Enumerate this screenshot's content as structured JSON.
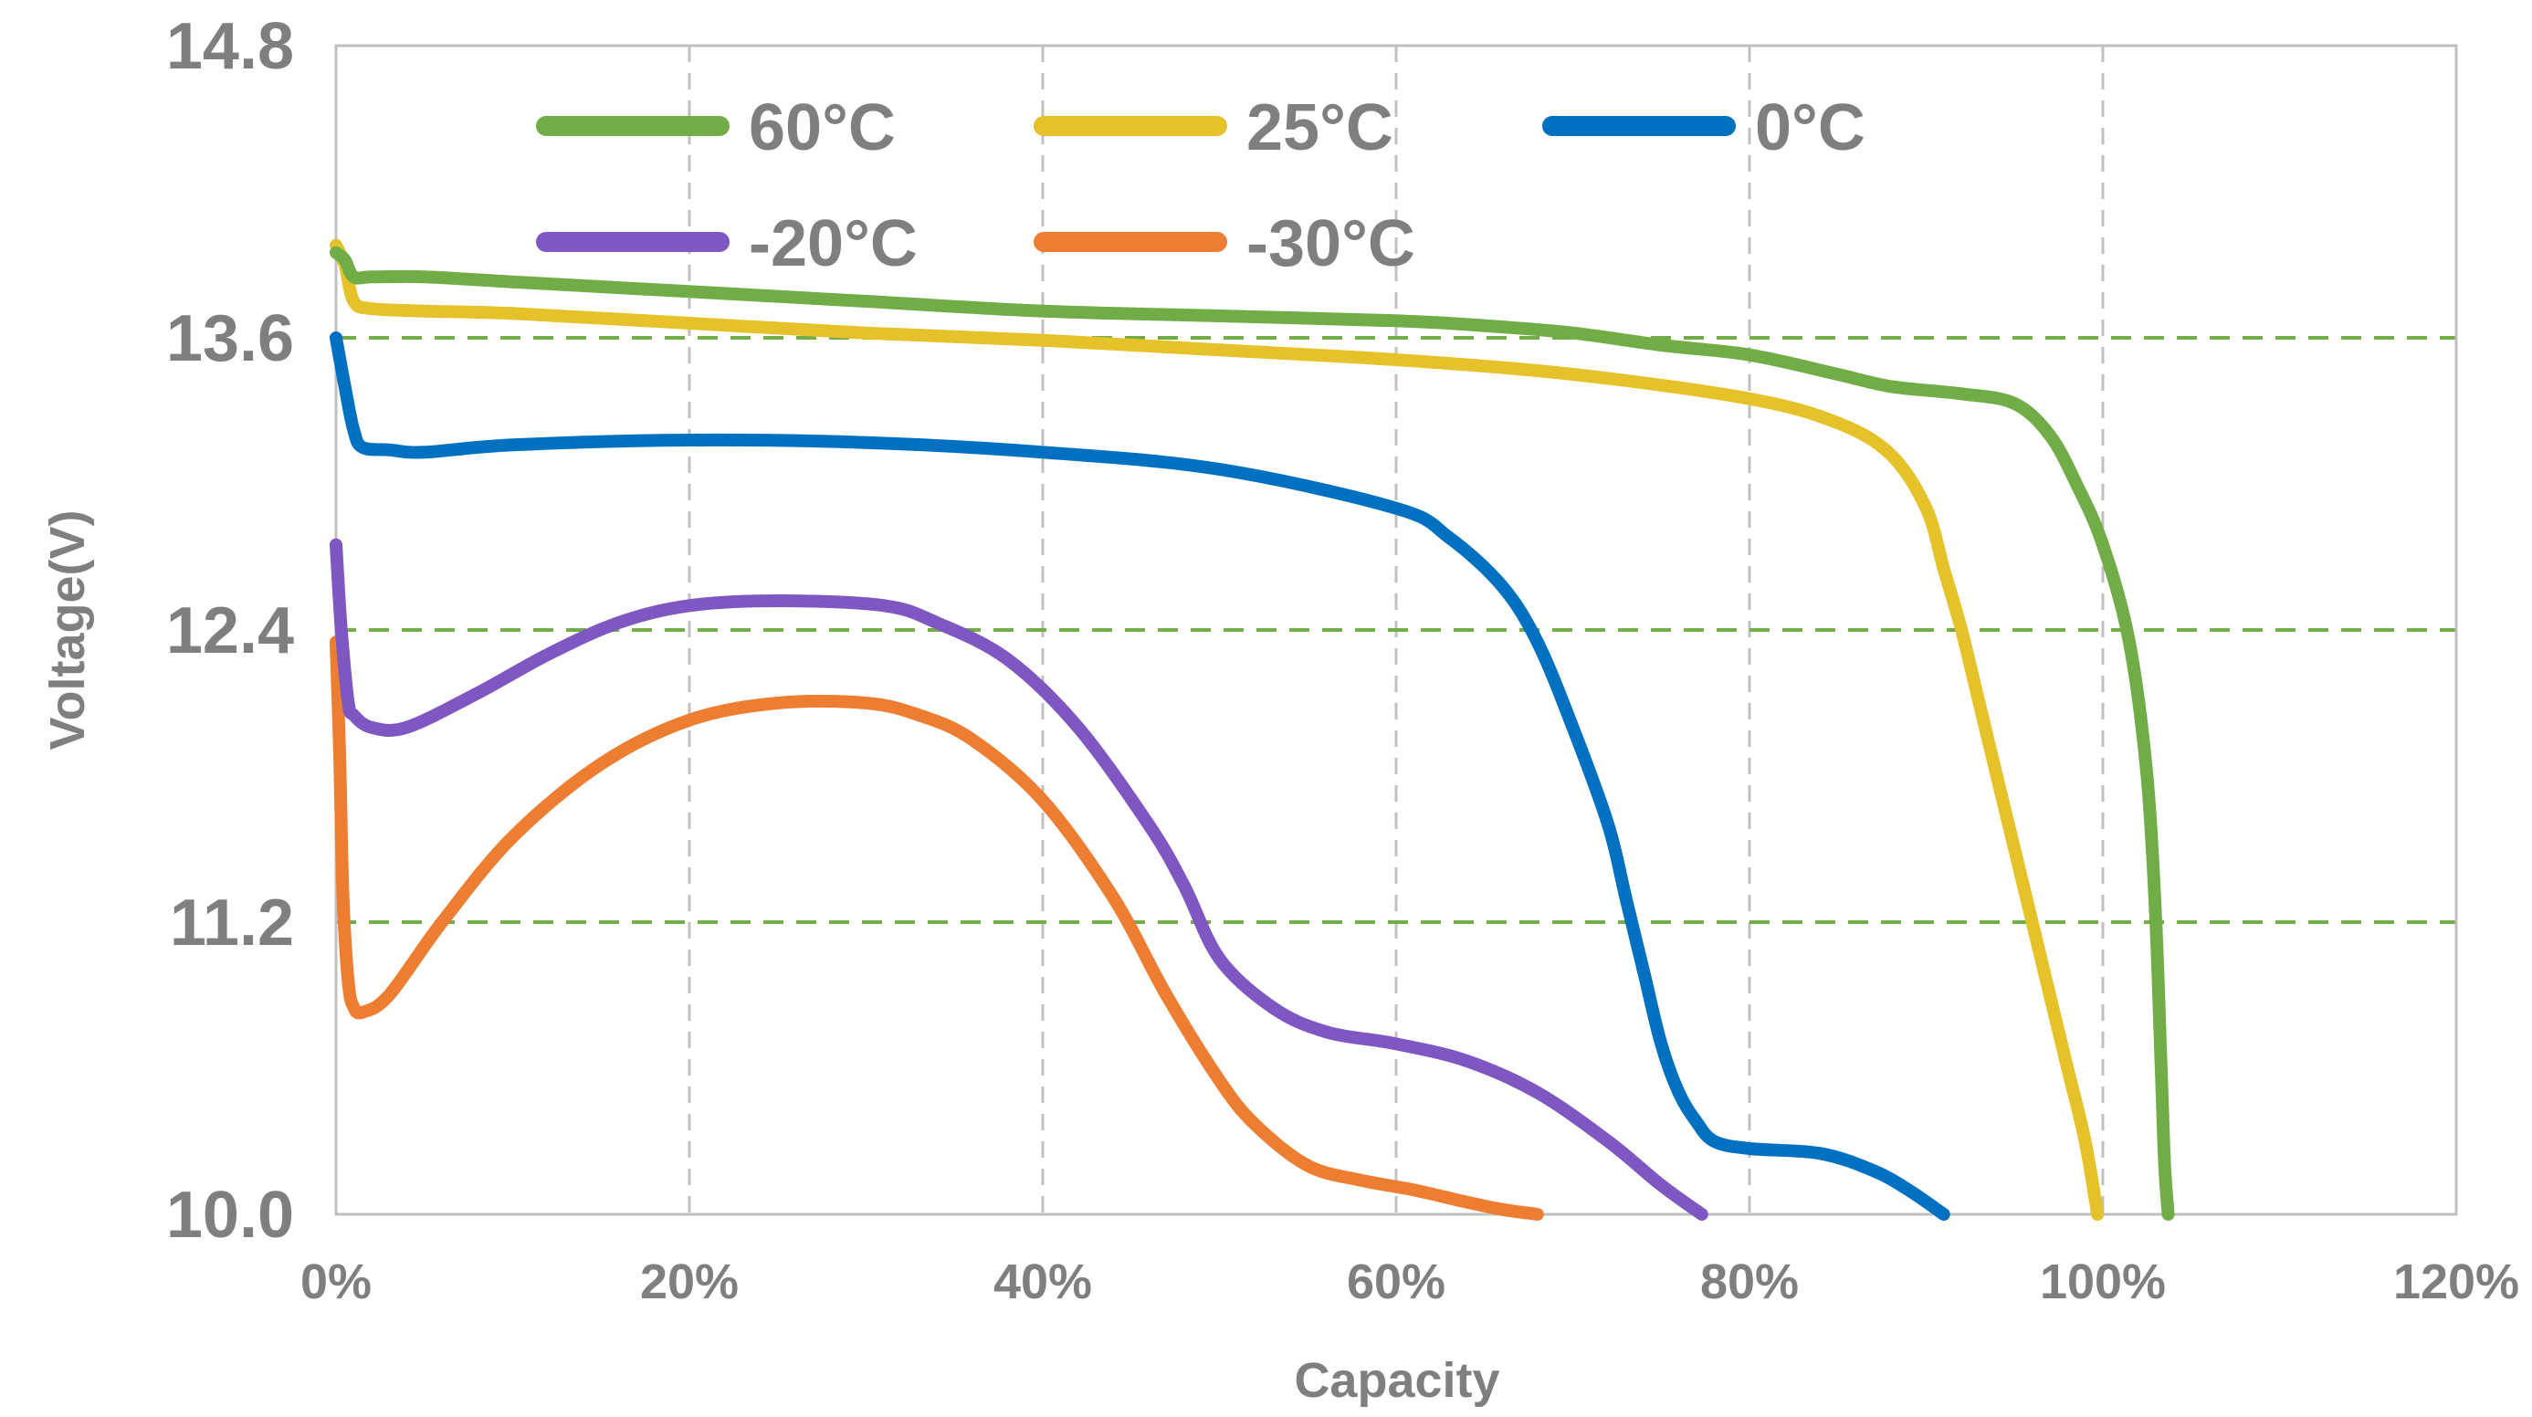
{
  "chart_data": {
    "type": "line",
    "xlabel": "Capacity",
    "ylabel": "Voltage(V)",
    "xlim": [
      0,
      120
    ],
    "ylim": [
      10.0,
      14.8
    ],
    "x_ticks": [
      "0%",
      "20%",
      "40%",
      "60%",
      "80%",
      "100%",
      "120%"
    ],
    "y_ticks": [
      "10.0",
      "11.2",
      "12.4",
      "13.6",
      "14.8"
    ],
    "x_tick_values": [
      0,
      20,
      40,
      60,
      80,
      100,
      120
    ],
    "y_tick_values": [
      10.0,
      11.2,
      12.4,
      13.6,
      14.8
    ],
    "grid": {
      "vertical": "gray dashed",
      "horizontal": "green dashed"
    },
    "legend_position": "top",
    "series": [
      {
        "name": "60°C",
        "color": "#70ad47",
        "x": [
          0,
          0.5,
          1,
          2,
          5,
          10,
          20,
          30,
          40,
          50,
          60,
          65,
          70,
          75,
          80,
          85,
          88,
          92,
          95,
          97,
          98.5,
          100,
          101.5,
          102.5,
          103,
          103.3,
          103.5,
          103.7
        ],
        "y": [
          13.95,
          13.92,
          13.85,
          13.85,
          13.85,
          13.83,
          13.79,
          13.75,
          13.71,
          13.69,
          13.67,
          13.65,
          13.62,
          13.57,
          13.53,
          13.45,
          13.4,
          13.37,
          13.33,
          13.2,
          13.0,
          12.75,
          12.35,
          11.8,
          11.2,
          10.6,
          10.2,
          10.0
        ]
      },
      {
        "name": "25°C",
        "color": "#e5c12a",
        "x": [
          0,
          0.5,
          1,
          2,
          5,
          10,
          20,
          30,
          40,
          50,
          60,
          70,
          80,
          85,
          88,
          90,
          91,
          92,
          93,
          94,
          95,
          96,
          97,
          98,
          99,
          99.7
        ],
        "y": [
          13.98,
          13.9,
          13.75,
          13.72,
          13.71,
          13.7,
          13.66,
          13.62,
          13.59,
          13.55,
          13.51,
          13.45,
          13.35,
          13.25,
          13.12,
          12.9,
          12.65,
          12.4,
          12.1,
          11.8,
          11.5,
          11.2,
          10.9,
          10.6,
          10.3,
          10.0
        ]
      },
      {
        "name": "0°C",
        "color": "#0070c0",
        "x": [
          0,
          0.5,
          1,
          1.5,
          3,
          5,
          10,
          20,
          30,
          40,
          50,
          60,
          63,
          66,
          68,
          70,
          72,
          73,
          74,
          75,
          76,
          77,
          78,
          80,
          84,
          87,
          89,
          91
        ],
        "y": [
          13.6,
          13.4,
          13.22,
          13.15,
          13.14,
          13.13,
          13.16,
          13.18,
          13.17,
          13.13,
          13.06,
          12.9,
          12.78,
          12.58,
          12.35,
          12.0,
          11.6,
          11.3,
          11.0,
          10.7,
          10.5,
          10.38,
          10.3,
          10.27,
          10.25,
          10.18,
          10.1,
          10.0
        ]
      },
      {
        "name": "-20°C",
        "color": "#7e57c2",
        "x": [
          0,
          0.3,
          0.7,
          1,
          2,
          4,
          8,
          12,
          16,
          20,
          25,
          31,
          34,
          38,
          42,
          46,
          48,
          50,
          53,
          56,
          60,
          64,
          68,
          72,
          75,
          77.3
        ],
        "y": [
          12.75,
          12.4,
          12.1,
          12.05,
          12.0,
          12.0,
          12.14,
          12.3,
          12.43,
          12.5,
          12.52,
          12.5,
          12.43,
          12.28,
          12.0,
          11.6,
          11.35,
          11.05,
          10.85,
          10.75,
          10.7,
          10.63,
          10.5,
          10.3,
          10.12,
          10.0
        ]
      },
      {
        "name": "-30°C",
        "color": "#ed7d31",
        "x": [
          0,
          0.2,
          0.4,
          0.7,
          1,
          1.5,
          3,
          6,
          10,
          15,
          20,
          25,
          30,
          33,
          36,
          40,
          44,
          47,
          50,
          52,
          55,
          58,
          61,
          64,
          66,
          68
        ],
        "y": [
          12.35,
          11.9,
          11.3,
          10.95,
          10.85,
          10.83,
          10.9,
          11.2,
          11.55,
          11.85,
          12.03,
          12.1,
          12.1,
          12.05,
          11.95,
          11.7,
          11.3,
          10.9,
          10.55,
          10.37,
          10.2,
          10.14,
          10.1,
          10.05,
          10.02,
          10.0
        ]
      }
    ]
  }
}
